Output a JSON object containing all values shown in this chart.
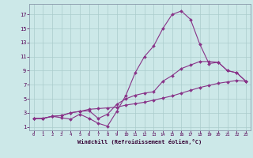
{
  "xlabel": "Windchill (Refroidissement éolien,°C)",
  "background_color": "#cce8e8",
  "grid_color": "#aacccc",
  "line_color": "#883388",
  "xlim": [
    -0.5,
    23.5
  ],
  "ylim": [
    0.5,
    18.5
  ],
  "xticks": [
    0,
    1,
    2,
    3,
    4,
    5,
    6,
    7,
    8,
    9,
    10,
    11,
    12,
    13,
    14,
    15,
    16,
    17,
    18,
    19,
    20,
    21,
    22,
    23
  ],
  "yticks": [
    1,
    3,
    5,
    7,
    9,
    11,
    13,
    15,
    17
  ],
  "series": [
    {
      "x": [
        0,
        1,
        2,
        3,
        4,
        5,
        6,
        7,
        8,
        9,
        10,
        11,
        12,
        13,
        14,
        15,
        16,
        17,
        18,
        19,
        20,
        21,
        22,
        23
      ],
      "y": [
        2.2,
        2.2,
        2.5,
        2.3,
        2.1,
        2.8,
        2.2,
        1.5,
        1.1,
        3.2,
        5.5,
        8.7,
        11.0,
        12.5,
        15.0,
        17.0,
        17.5,
        16.3,
        12.8,
        10.0,
        10.2,
        9.0,
        8.7,
        7.5
      ]
    },
    {
      "x": [
        0,
        1,
        2,
        3,
        4,
        5,
        6,
        7,
        8,
        9,
        10,
        11,
        12,
        13,
        14,
        15,
        16,
        17,
        18,
        19,
        20,
        21,
        22,
        23
      ],
      "y": [
        2.2,
        2.2,
        2.5,
        2.6,
        3.0,
        3.2,
        3.3,
        2.2,
        2.8,
        4.2,
        5.0,
        5.5,
        5.8,
        6.0,
        7.5,
        8.3,
        9.3,
        9.8,
        10.3,
        10.3,
        10.2,
        9.0,
        8.7,
        7.5
      ]
    },
    {
      "x": [
        0,
        1,
        2,
        3,
        4,
        5,
        6,
        7,
        8,
        9,
        10,
        11,
        12,
        13,
        14,
        15,
        16,
        17,
        18,
        19,
        20,
        21,
        22,
        23
      ],
      "y": [
        2.2,
        2.2,
        2.5,
        2.6,
        3.0,
        3.2,
        3.5,
        3.6,
        3.7,
        3.8,
        4.1,
        4.3,
        4.5,
        4.8,
        5.1,
        5.4,
        5.8,
        6.2,
        6.6,
        6.9,
        7.2,
        7.4,
        7.6,
        7.5
      ]
    }
  ]
}
